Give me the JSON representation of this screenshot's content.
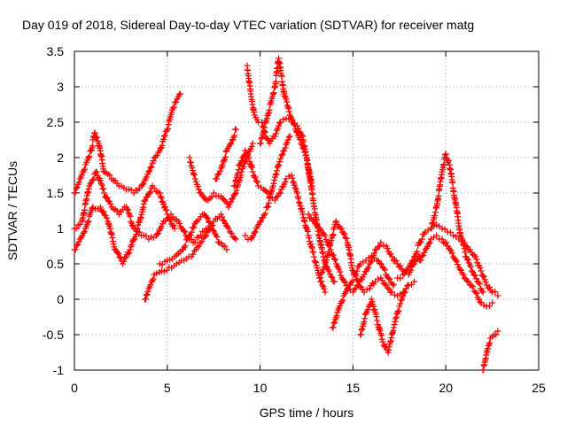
{
  "chart_data": {
    "type": "scatter",
    "title": "Day 019 of 2018, Sidereal Day-to-day VTEC variation (SDTVAR) for receiver matg",
    "xlabel": "GPS time / hours",
    "ylabel": "SDTVAR / TECUs",
    "xlim": [
      0,
      25
    ],
    "ylim": [
      -1,
      3.5
    ],
    "x_ticks": [
      "0",
      "5",
      "10",
      "15",
      "20",
      "25"
    ],
    "y_ticks": [
      "-1",
      "-0.5",
      "0",
      "0.5",
      "1",
      "1.5",
      "2",
      "2.5",
      "3",
      "3.5"
    ],
    "grid": true,
    "legend": "none",
    "marker": "+",
    "color": "#ff0000",
    "series": [
      {
        "x": [
          0.0,
          0.3,
          0.6,
          0.9,
          1.1,
          1.3,
          1.6,
          2.0,
          2.4,
          2.8,
          3.2,
          3.6,
          4.0,
          4.3,
          4.6,
          5.0,
          5.3,
          5.7
        ],
        "y": [
          1.5,
          1.7,
          1.9,
          2.1,
          2.35,
          2.2,
          1.8,
          1.7,
          1.6,
          1.55,
          1.5,
          1.6,
          1.8,
          2.0,
          2.1,
          2.4,
          2.7,
          2.9
        ]
      },
      {
        "x": [
          0.0,
          0.3,
          0.6,
          1.0,
          1.4,
          1.8,
          2.2,
          2.6,
          3.0,
          3.4,
          3.8,
          4.2,
          4.6,
          5.0,
          5.4
        ],
        "y": [
          0.7,
          0.85,
          1.0,
          1.3,
          1.3,
          1.1,
          0.7,
          0.5,
          0.7,
          1.0,
          1.4,
          1.6,
          1.5,
          1.2,
          1.0
        ]
      },
      {
        "x": [
          0.0,
          0.4,
          0.8,
          1.2,
          1.6,
          2.0,
          2.4,
          2.8,
          3.2,
          3.6,
          4.0,
          4.4,
          4.8,
          5.2,
          5.6,
          6.0,
          6.4,
          6.8,
          7.2
        ],
        "y": [
          1.0,
          1.1,
          1.6,
          1.8,
          1.5,
          1.3,
          1.2,
          1.3,
          1.0,
          0.9,
          0.85,
          0.9,
          1.1,
          1.2,
          1.1,
          0.9,
          0.8,
          0.9,
          1.0
        ]
      },
      {
        "x": [
          3.8,
          4.0,
          4.3,
          4.7,
          5.1,
          5.5,
          5.9,
          6.3,
          6.7,
          7.1,
          7.5,
          7.9,
          8.3,
          8.7
        ],
        "y": [
          0.0,
          0.15,
          0.35,
          0.4,
          0.45,
          0.5,
          0.55,
          0.6,
          0.75,
          0.9,
          1.1,
          1.2,
          1.0,
          0.85
        ]
      },
      {
        "x": [
          4.6,
          5.0,
          5.4,
          5.8,
          6.2,
          6.6,
          7.0,
          7.4,
          7.8,
          8.2
        ],
        "y": [
          0.5,
          0.55,
          0.6,
          0.7,
          0.9,
          1.1,
          1.2,
          1.0,
          0.8,
          0.7
        ]
      },
      {
        "x": [
          6.2,
          6.5,
          6.8,
          7.1,
          7.5,
          7.9,
          8.3,
          8.7,
          9.0,
          9.3,
          9.6
        ],
        "y": [
          2.0,
          1.7,
          1.5,
          1.4,
          1.5,
          1.45,
          1.3,
          1.5,
          1.8,
          2.0,
          2.2
        ]
      },
      {
        "x": [
          7.6,
          7.9,
          8.2,
          8.5,
          8.7
        ],
        "y": [
          1.7,
          1.85,
          2.1,
          2.25,
          2.4
        ]
      },
      {
        "x": [
          8.6,
          8.9,
          9.2,
          9.4,
          9.6,
          9.9,
          10.2,
          10.5,
          10.8,
          11.1,
          11.4,
          11.7,
          12.0,
          12.3,
          12.6,
          12.9,
          13.2,
          13.5
        ],
        "y": [
          1.6,
          1.9,
          2.1,
          2.0,
          1.8,
          1.6,
          1.55,
          1.45,
          1.4,
          1.5,
          1.7,
          1.75,
          1.5,
          1.2,
          0.9,
          0.6,
          0.3,
          0.1
        ]
      },
      {
        "x": [
          9.3,
          9.5,
          9.7,
          9.9,
          10.1,
          10.3,
          10.5,
          10.8,
          11.1,
          11.4,
          11.7,
          12.0,
          12.3,
          12.5,
          12.8
        ],
        "y": [
          3.3,
          2.9,
          2.6,
          2.5,
          2.5,
          2.3,
          2.2,
          2.3,
          2.5,
          2.55,
          2.5,
          2.45,
          2.3,
          2.0,
          1.6
        ]
      },
      {
        "x": [
          10.0,
          10.3,
          10.6,
          10.8,
          11.0,
          11.3,
          11.6,
          11.9,
          12.2,
          12.5,
          12.8,
          13.1,
          13.4,
          13.7,
          14.0
        ],
        "y": [
          2.2,
          2.5,
          2.8,
          3.0,
          3.4,
          2.9,
          2.6,
          2.4,
          2.2,
          2.0,
          1.5,
          1.0,
          0.6,
          0.4,
          0.25
        ]
      },
      {
        "x": [
          9.2,
          9.5,
          9.8,
          10.1,
          10.4,
          10.7,
          11.0,
          11.3,
          11.6
        ],
        "y": [
          0.9,
          0.85,
          1.0,
          1.15,
          1.3,
          1.6,
          1.9,
          2.1,
          2.3
        ]
      },
      {
        "x": [
          12.6,
          12.9,
          13.2,
          13.5,
          13.8,
          14.1,
          14.4,
          14.7,
          15.0,
          15.3,
          15.6,
          15.9,
          16.2,
          16.5,
          16.8,
          17.1,
          17.4,
          17.7,
          18.0,
          18.3,
          18.6
        ],
        "y": [
          1.2,
          1.1,
          1.0,
          0.9,
          0.7,
          0.5,
          0.3,
          0.15,
          0.1,
          0.2,
          0.35,
          0.5,
          0.7,
          0.8,
          0.75,
          0.6,
          0.5,
          0.4,
          0.35,
          0.5,
          0.6
        ]
      },
      {
        "x": [
          13.2,
          13.5,
          13.8,
          14.1,
          14.4,
          14.7,
          15.0,
          15.3,
          15.6,
          15.9,
          16.2,
          16.5,
          16.8,
          17.1,
          17.4,
          17.7,
          18.0,
          18.3
        ],
        "y": [
          0.3,
          0.5,
          0.8,
          1.1,
          1.0,
          0.8,
          0.4,
          0.2,
          0.1,
          0.15,
          0.25,
          0.3,
          0.2,
          0.1,
          0.05,
          0.1,
          0.2,
          0.25
        ]
      },
      {
        "x": [
          13.9,
          14.2,
          14.5,
          14.8,
          15.1,
          15.4,
          15.7,
          16.0,
          16.3,
          16.6,
          16.9,
          17.2
        ],
        "y": [
          -0.4,
          -0.15,
          0.05,
          0.2,
          0.35,
          0.5,
          0.55,
          0.6,
          0.55,
          0.45,
          0.3,
          0.2
        ]
      },
      {
        "x": [
          15.4,
          15.7,
          16.0,
          16.3,
          16.6,
          16.9,
          17.2,
          17.5,
          17.8
        ],
        "y": [
          -0.5,
          -0.2,
          0.0,
          -0.3,
          -0.6,
          -0.75,
          -0.4,
          -0.1,
          0.1
        ]
      },
      {
        "x": [
          17.4,
          17.7,
          18.0,
          18.3,
          18.6,
          18.9,
          19.2,
          19.5,
          19.8,
          20.1,
          20.4,
          20.7,
          21.0,
          21.3,
          21.6,
          21.9,
          22.2,
          22.5,
          22.8
        ],
        "y": [
          0.3,
          0.35,
          0.45,
          0.6,
          0.8,
          0.95,
          1.0,
          1.05,
          1.0,
          0.95,
          0.9,
          0.85,
          0.8,
          0.7,
          0.6,
          0.4,
          0.2,
          0.1,
          0.05
        ]
      },
      {
        "x": [
          19.2,
          19.5,
          19.8,
          20.0,
          20.2,
          20.5,
          20.8,
          21.1,
          21.4,
          21.7,
          22.0
        ],
        "y": [
          1.0,
          1.3,
          1.8,
          2.05,
          1.9,
          1.4,
          0.9,
          0.6,
          0.4,
          0.25,
          0.1
        ]
      },
      {
        "x": [
          18.6,
          18.9,
          19.2,
          19.5,
          19.8,
          20.1,
          20.4,
          20.7,
          21.0,
          21.3,
          21.6,
          21.9,
          22.2,
          22.5
        ],
        "y": [
          0.55,
          0.7,
          0.85,
          0.9,
          0.85,
          0.75,
          0.6,
          0.45,
          0.3,
          0.2,
          0.1,
          -0.05,
          -0.1,
          -0.05
        ]
      },
      {
        "x": [
          22.0,
          22.2,
          22.4,
          22.6,
          22.8
        ],
        "y": [
          -1.0,
          -0.75,
          -0.55,
          -0.5,
          -0.45
        ]
      }
    ]
  }
}
